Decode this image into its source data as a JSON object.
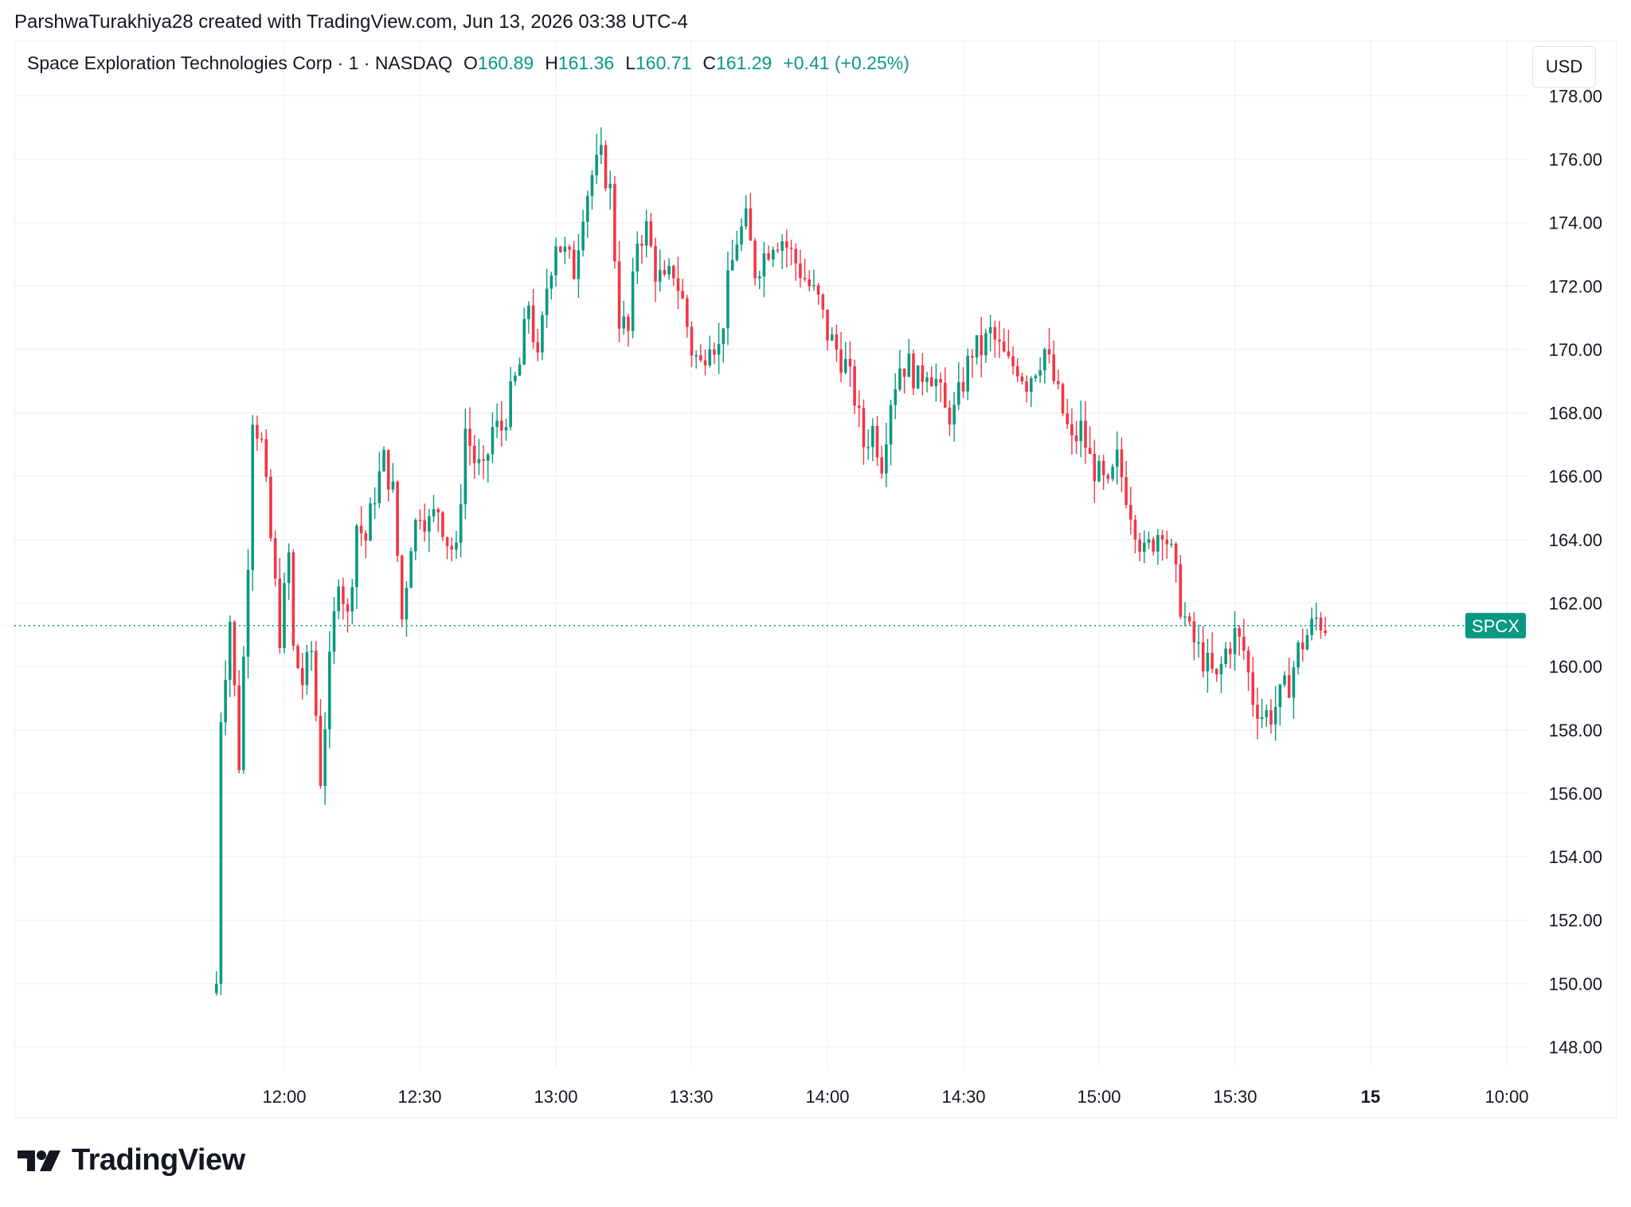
{
  "header": {
    "caption": "ParshwaTurakhiya28 created with TradingView.com, Jun 13, 2026 03:38 UTC-4"
  },
  "legend": {
    "symbol": "Space Exploration Technologies Corp · 1 · NASDAQ",
    "open_label": "O",
    "open": "160.89",
    "high_label": "H",
    "high": "161.36",
    "low_label": "L",
    "low": "160.71",
    "close_label": "C",
    "close": "161.29",
    "change": "+0.41 (+0.25%)"
  },
  "currency": "USD",
  "footer": {
    "brand": "TradingView",
    "logo_icon": "tradingview-logo-icon"
  },
  "colors": {
    "up": "#089981",
    "down": "#f23645",
    "grid": "#f0f3fa",
    "text": "#131722",
    "price_label_bg": "#089981"
  },
  "chart_data": {
    "type": "candlestick",
    "ticker_label": "SPCX",
    "last_price": 161.29,
    "ylim": [
      147,
      178
    ],
    "y_ticks": [
      "148.00",
      "150.00",
      "152.00",
      "154.00",
      "156.00",
      "158.00",
      "160.00",
      "162.00",
      "164.00",
      "166.00",
      "168.00",
      "170.00",
      "172.00",
      "174.00",
      "176.00",
      "178.00"
    ],
    "x_ticks": [
      "12:00",
      "12:30",
      "13:00",
      "13:30",
      "14:00",
      "14:30",
      "15:00",
      "15:30",
      "15",
      "10:00"
    ],
    "x_ticks_bold": [
      "15"
    ],
    "grid": true,
    "series": [
      {
        "close_path": [
          [
            "11:45",
            150.0
          ],
          [
            "11:46",
            158.5
          ],
          [
            "11:48",
            161.5
          ],
          [
            "11:50",
            157.0
          ],
          [
            "11:52",
            163.5
          ],
          [
            "11:53",
            168.0
          ],
          [
            "11:55",
            167.0
          ],
          [
            "11:57",
            164.0
          ],
          [
            "11:59",
            161.0
          ],
          [
            "12:01",
            163.5
          ],
          [
            "12:02",
            160.5
          ],
          [
            "12:04",
            159.5
          ],
          [
            "12:06",
            160.5
          ],
          [
            "12:08",
            156.5
          ],
          [
            "12:10",
            160.0
          ],
          [
            "12:12",
            163.0
          ],
          [
            "12:14",
            161.5
          ],
          [
            "12:16",
            164.5
          ],
          [
            "12:18",
            164.0
          ],
          [
            "12:20",
            165.5
          ],
          [
            "12:22",
            166.5
          ],
          [
            "12:24",
            165.5
          ],
          [
            "12:26",
            161.5
          ],
          [
            "12:28",
            164.0
          ],
          [
            "12:30",
            165.0
          ],
          [
            "12:32",
            164.5
          ],
          [
            "12:34",
            165.0
          ],
          [
            "12:36",
            164.0
          ],
          [
            "12:38",
            163.5
          ],
          [
            "12:40",
            167.5
          ],
          [
            "12:42",
            166.5
          ],
          [
            "12:44",
            166.0
          ],
          [
            "12:46",
            167.5
          ],
          [
            "12:48",
            167.5
          ],
          [
            "12:50",
            168.5
          ],
          [
            "12:52",
            169.5
          ],
          [
            "12:54",
            171.5
          ],
          [
            "12:56",
            169.5
          ],
          [
            "12:58",
            172.0
          ],
          [
            "13:00",
            173.5
          ],
          [
            "13:02",
            173.0
          ],
          [
            "13:04",
            172.5
          ],
          [
            "13:06",
            174.5
          ],
          [
            "13:08",
            175.5
          ],
          [
            "13:10",
            176.0
          ],
          [
            "13:12",
            175.0
          ],
          [
            "13:14",
            171.0
          ],
          [
            "13:16",
            170.5
          ],
          [
            "13:18",
            173.5
          ],
          [
            "13:20",
            173.8
          ],
          [
            "13:22",
            172.5
          ],
          [
            "13:24",
            172.0
          ],
          [
            "13:26",
            172.5
          ],
          [
            "13:28",
            171.5
          ],
          [
            "13:30",
            170.0
          ],
          [
            "13:32",
            169.5
          ],
          [
            "13:34",
            170.5
          ],
          [
            "13:36",
            170.0
          ],
          [
            "13:38",
            172.0
          ],
          [
            "13:40",
            173.5
          ],
          [
            "13:42",
            174.0
          ],
          [
            "13:44",
            172.5
          ],
          [
            "13:46",
            173.0
          ],
          [
            "13:48",
            173.5
          ],
          [
            "13:50",
            173.5
          ],
          [
            "13:52",
            173.0
          ],
          [
            "13:54",
            172.5
          ],
          [
            "13:56",
            172.0
          ],
          [
            "13:58",
            171.5
          ],
          [
            "14:00",
            170.5
          ],
          [
            "14:02",
            170.0
          ],
          [
            "14:04",
            169.5
          ],
          [
            "14:06",
            168.5
          ],
          [
            "14:08",
            167.0
          ],
          [
            "14:10",
            167.5
          ],
          [
            "14:12",
            166.5
          ],
          [
            "14:14",
            168.5
          ],
          [
            "14:16",
            169.5
          ],
          [
            "14:18",
            169.5
          ],
          [
            "14:20",
            169.0
          ],
          [
            "14:22",
            169.5
          ],
          [
            "14:24",
            169.0
          ],
          [
            "14:26",
            168.0
          ],
          [
            "14:28",
            168.0
          ],
          [
            "14:30",
            169.0
          ],
          [
            "14:32",
            170.0
          ],
          [
            "14:34",
            170.0
          ],
          [
            "14:36",
            170.5
          ],
          [
            "14:38",
            170.0
          ],
          [
            "14:40",
            169.5
          ],
          [
            "14:42",
            169.5
          ],
          [
            "14:44",
            169.0
          ],
          [
            "14:46",
            169.5
          ],
          [
            "14:48",
            170.0
          ],
          [
            "14:50",
            169.0
          ],
          [
            "14:52",
            168.0
          ],
          [
            "14:54",
            167.0
          ],
          [
            "14:56",
            167.5
          ],
          [
            "14:58",
            166.5
          ],
          [
            "15:00",
            166.0
          ],
          [
            "15:02",
            165.5
          ],
          [
            "15:04",
            166.5
          ],
          [
            "15:06",
            165.5
          ],
          [
            "15:08",
            164.5
          ],
          [
            "15:10",
            163.5
          ],
          [
            "15:12",
            164.0
          ],
          [
            "15:14",
            164.5
          ],
          [
            "15:16",
            163.5
          ],
          [
            "15:18",
            162.0
          ],
          [
            "15:20",
            161.0
          ],
          [
            "15:22",
            160.5
          ],
          [
            "15:24",
            160.0
          ],
          [
            "15:26",
            159.5
          ],
          [
            "15:28",
            160.5
          ],
          [
            "15:30",
            161.0
          ],
          [
            "15:32",
            160.5
          ],
          [
            "15:34",
            159.0
          ],
          [
            "15:36",
            158.5
          ],
          [
            "15:38",
            158.5
          ],
          [
            "15:40",
            159.0
          ],
          [
            "15:42",
            159.5
          ],
          [
            "15:44",
            160.5
          ],
          [
            "15:46",
            161.0
          ],
          [
            "15:48",
            161.5
          ],
          [
            "15:50",
            161.3
          ]
        ]
      }
    ]
  }
}
